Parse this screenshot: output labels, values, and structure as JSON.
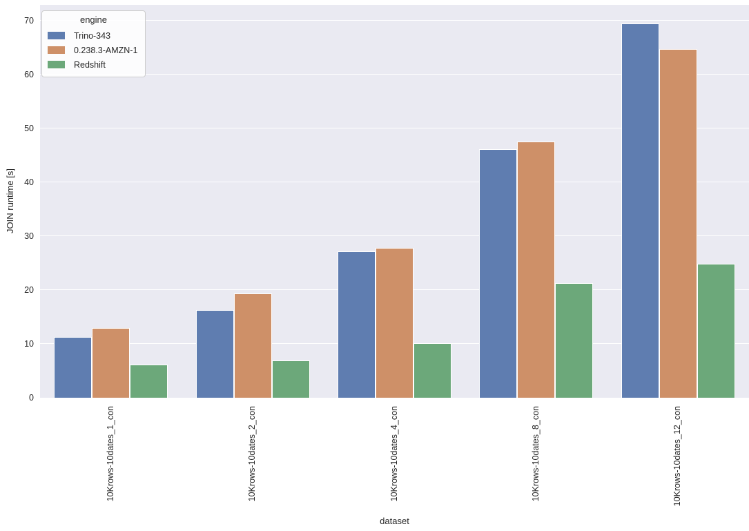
{
  "chart_data": {
    "type": "bar",
    "title": "",
    "xlabel": "dataset",
    "ylabel": "JOIN runtime [s]",
    "legend_title": "engine",
    "legend_position": "upper-left",
    "grid": true,
    "plot_bg_color": "#EAEAF2",
    "grid_color": "#FFFFFF",
    "categories": [
      "10Krows-10dates_1_con",
      "10Krows-10dates_2_con",
      "10Krows-10dates_4_con",
      "10Krows-10dates_8_con",
      "10Krows-10dates_12_con"
    ],
    "series": [
      {
        "name": "Trino-343",
        "color": "#5F7DB0",
        "values": [
          11.3,
          16.3,
          27.2,
          46.2,
          69.5
        ]
      },
      {
        "name": "0.238.3-AMZN-1",
        "color": "#CE9068",
        "values": [
          12.9,
          19.4,
          27.8,
          47.6,
          64.8
        ]
      },
      {
        "name": "Redshift",
        "color": "#6CA87A",
        "values": [
          6.2,
          6.9,
          10.1,
          21.3,
          24.9
        ]
      }
    ],
    "yticks": [
      0,
      10,
      20,
      30,
      40,
      50,
      60,
      70
    ],
    "ylim": [
      0,
      73
    ]
  }
}
